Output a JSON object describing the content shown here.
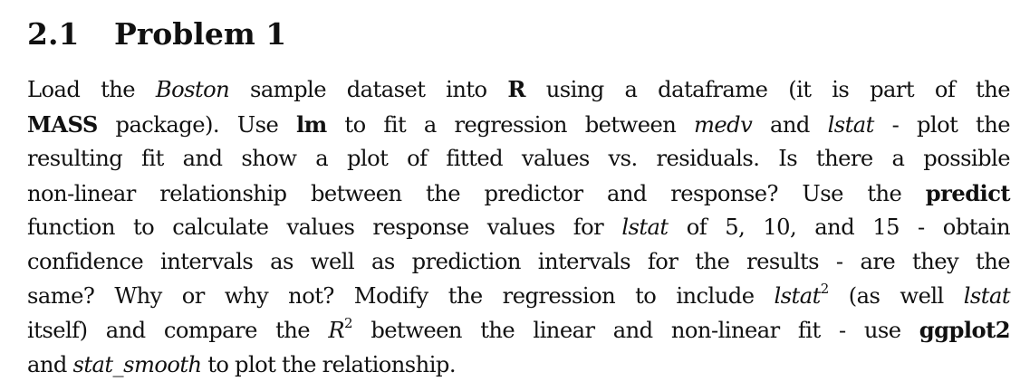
{
  "section": {
    "number": "2.1",
    "title": "Problem 1"
  },
  "paragraph": {
    "l1": {
      "a": "Load the ",
      "boston": "Boston",
      "b": " sample dataset into ",
      "r": "R",
      "c": " using a dataframe (it is part of the"
    },
    "l2": {
      "mass": "MASS",
      "a": " package). Use ",
      "lm": "lm",
      "b": " to fit a regression between ",
      "medv": "medv",
      "c": " and ",
      "lstat": "lstat",
      "d": " - plot the"
    },
    "l3": {
      "a": "resulting fit and show a plot of fitted values vs. residuals. Is there a possible"
    },
    "l4": {
      "a": "non-linear relationship between the predictor and response? Use the ",
      "predict": "predict"
    },
    "l5": {
      "a": "function to calculate values response values for ",
      "lstat": "lstat",
      "b": " of 5, 10, and 15 - obtain"
    },
    "l6": {
      "a": "confidence intervals as well as prediction intervals for the results - are they the"
    },
    "l7": {
      "a": "same? Why or why not? Modify the regression to include ",
      "lstat": "lstat",
      "sup": "2",
      "b": " (as well ",
      "lstat2": "lstat"
    },
    "l8": {
      "a": "itself) and compare the ",
      "R": "R",
      "sup": "2",
      "b": " between the linear and non-linear fit - use ",
      "ggplot2": "ggplot2"
    },
    "l9": {
      "a": "and ",
      "stat_smooth": "stat_smooth",
      "b": " to plot the relationship."
    }
  }
}
